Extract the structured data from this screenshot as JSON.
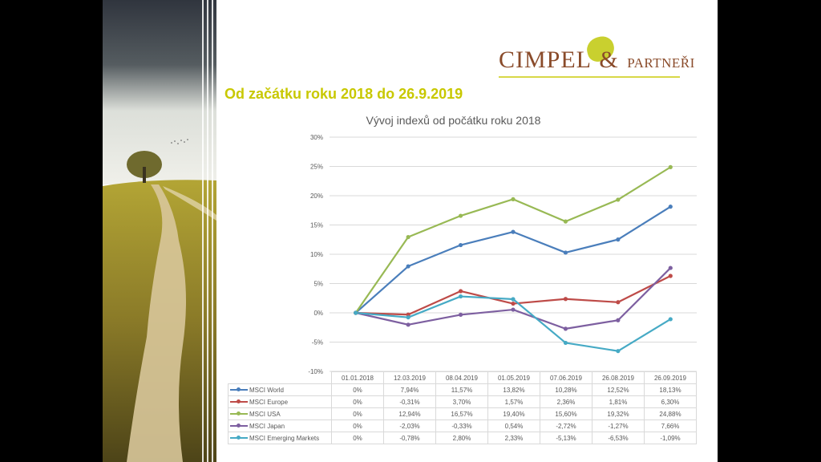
{
  "logo": {
    "brand": "CIMPEL",
    "ampersand": "&",
    "suffix": "PARTNEŘI"
  },
  "heading": "Od začátku roku 2018 do 26.9.2019",
  "colors": {
    "heading": "#c8c800",
    "logo_text": "#8a4b2a",
    "gridline": "#d9d9d9"
  },
  "chart_data": {
    "type": "line",
    "title": "Vývoj indexů od počátku roku 2018",
    "xlabel": "",
    "ylabel": "",
    "ylim": [
      -10,
      30
    ],
    "yticks": [
      30,
      25,
      20,
      15,
      10,
      5,
      0,
      -5,
      -10
    ],
    "ytick_labels": [
      "30%",
      "25%",
      "20%",
      "15%",
      "10%",
      "5%",
      "0%",
      "-5%",
      "-10%"
    ],
    "grid": true,
    "legend": "data-table-below",
    "categories": [
      "01.01.2018",
      "12.03.2019",
      "08.04.2019",
      "01.05.2019",
      "07.06.2019",
      "26.08.2019",
      "26.09.2019"
    ],
    "series": [
      {
        "name": "MSCI World",
        "color": "#4a7ebb",
        "values": [
          0,
          7.94,
          11.57,
          13.82,
          10.28,
          12.52,
          18.13
        ],
        "labels": [
          "0%",
          "7,94%",
          "11,57%",
          "13,82%",
          "10,28%",
          "12,52%",
          "18,13%"
        ]
      },
      {
        "name": "MSCI Europe",
        "color": "#be4b48",
        "values": [
          0,
          -0.31,
          3.7,
          1.57,
          2.36,
          1.81,
          6.3
        ],
        "labels": [
          "0%",
          "-0,31%",
          "3,70%",
          "1,57%",
          "2,36%",
          "1,81%",
          "6,30%"
        ]
      },
      {
        "name": "MSCI USA",
        "color": "#98b954",
        "values": [
          0,
          12.94,
          16.57,
          19.4,
          15.6,
          19.32,
          24.88
        ],
        "labels": [
          "0%",
          "12,94%",
          "16,57%",
          "19,40%",
          "15,60%",
          "19,32%",
          "24,88%"
        ]
      },
      {
        "name": "MSCI Japan",
        "color": "#7d5fa0",
        "values": [
          0,
          -2.03,
          -0.33,
          0.54,
          -2.72,
          -1.27,
          7.66
        ],
        "labels": [
          "0%",
          "-2,03%",
          "-0,33%",
          "0,54%",
          "-2,72%",
          "-1,27%",
          "7,66%"
        ]
      },
      {
        "name": "MSCI Emerging Markets",
        "color": "#46aac5",
        "values": [
          0,
          -0.78,
          2.8,
          2.33,
          -5.13,
          -6.53,
          -1.09
        ],
        "labels": [
          "0%",
          "-0,78%",
          "2,80%",
          "2,33%",
          "-5,13%",
          "-6,53%",
          "-1,09%"
        ]
      }
    ]
  }
}
